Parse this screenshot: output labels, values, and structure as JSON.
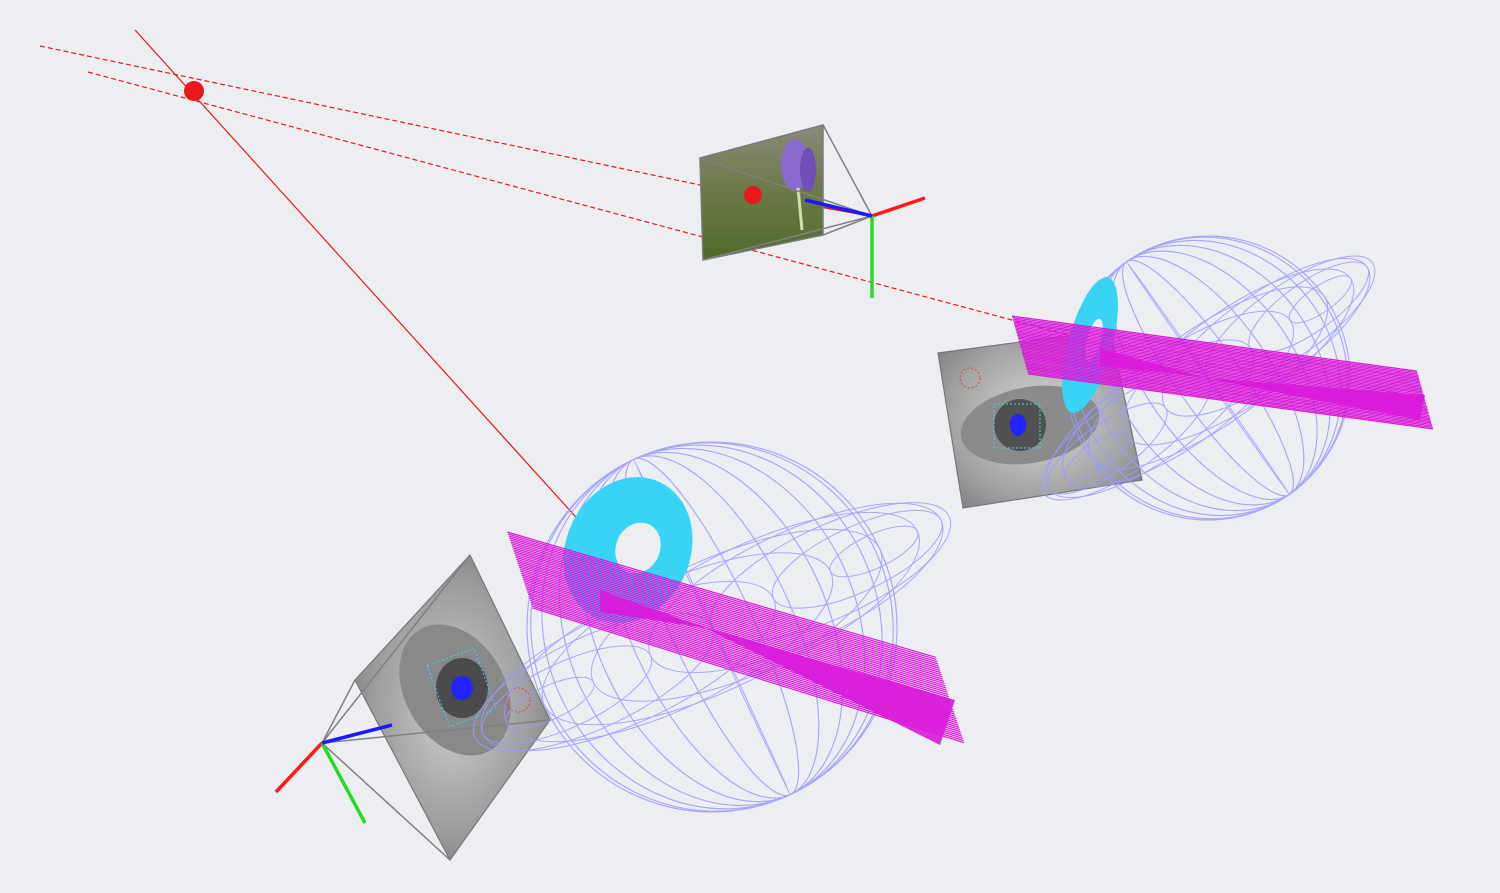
{
  "scene": {
    "background": "#eceef1",
    "colors": {
      "gaze_ray": "#e8191c",
      "eyeball_wireframe": "#9b9bff",
      "iris_disc": "#38d3f5",
      "gaze_vectors": "#d91ad9",
      "axis_x": "#ff1a1a",
      "axis_y": "#22dd22",
      "axis_z": "#1a1aff",
      "camera_frustum": "#808080"
    },
    "objects": {
      "gaze_target": "red-gaze-target-point",
      "scene_camera": "scene-camera-with-flower-image",
      "left_eye": "left-eyeball-wireframe-sphere",
      "right_eye": "right-eyeball-wireframe-sphere",
      "left_eye_camera": "left-eye-camera-with-eye-image",
      "right_eye_camera": "right-eye-camera-with-eye-image"
    }
  }
}
